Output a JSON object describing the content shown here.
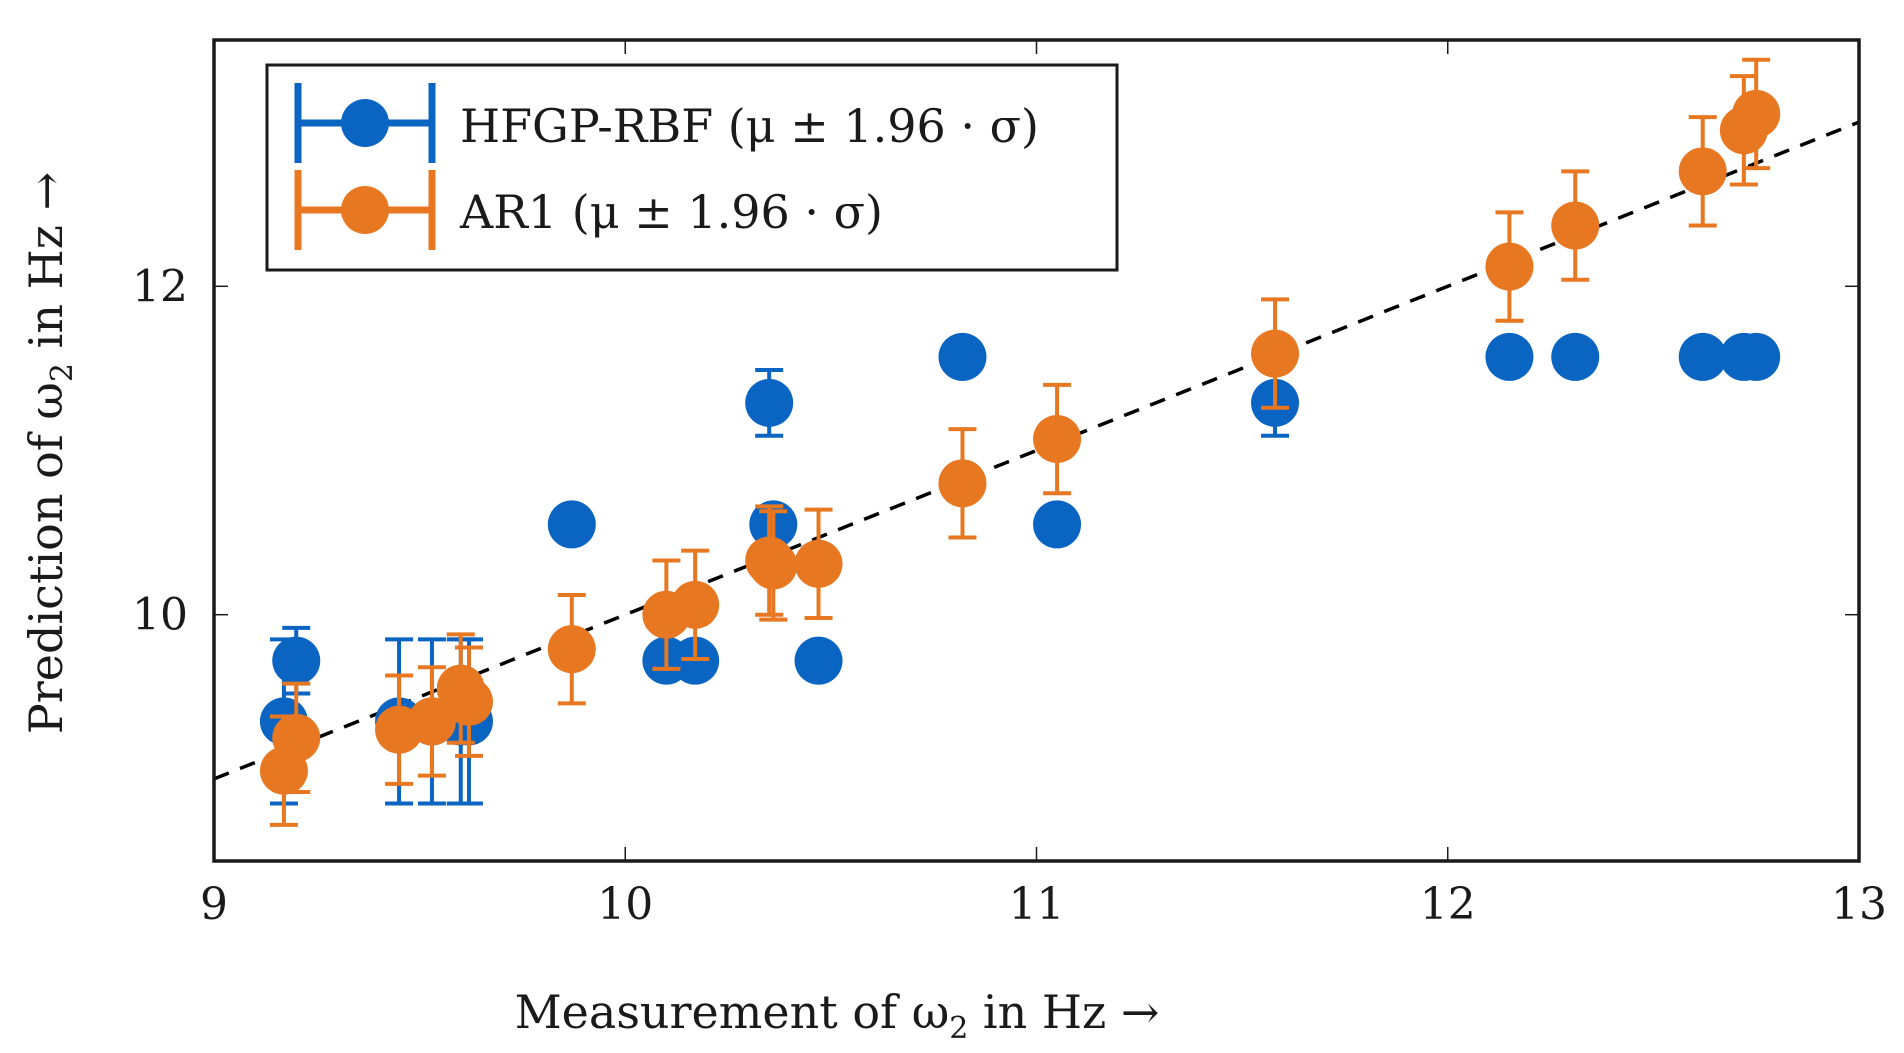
{
  "chart_data": {
    "type": "scatter",
    "title": "",
    "xlabel": "Measurement of ω",
    "xlabel_sub": "2",
    "xlabel_suffix": " in Hz →",
    "ylabel": "Prediction of ω",
    "ylabel_sub": "2",
    "ylabel_suffix": " in Hz →",
    "xlim": [
      9,
      13
    ],
    "ylim": [
      8.5,
      13.5
    ],
    "xticks": [
      9,
      10,
      11,
      12,
      13
    ],
    "yticks": [
      10,
      12
    ],
    "xtick_labels": [
      "9",
      "10",
      "11",
      "12",
      "13"
    ],
    "ytick_labels": [
      "10",
      "12"
    ],
    "reference_line": {
      "style": "dashed",
      "color": "#000000",
      "x": [
        9,
        13
      ],
      "y": [
        9,
        13
      ]
    },
    "legend_position": "top-left",
    "series": [
      {
        "name": "HFGP-RBF (μ ± 1.96 · σ)",
        "color": "#0a64c2",
        "points": [
          {
            "x": 9.17,
            "y": 9.35,
            "err": 0.5
          },
          {
            "x": 9.2,
            "y": 9.72,
            "err": 0.2
          },
          {
            "x": 9.45,
            "y": 9.35,
            "err": 0.5
          },
          {
            "x": 9.53,
            "y": 9.35,
            "err": 0.5
          },
          {
            "x": 9.6,
            "y": 9.35,
            "err": 0.5
          },
          {
            "x": 9.62,
            "y": 9.35,
            "err": 0.5
          },
          {
            "x": 9.87,
            "y": 10.55,
            "err": 0
          },
          {
            "x": 10.1,
            "y": 9.72,
            "err": 0
          },
          {
            "x": 10.17,
            "y": 9.72,
            "err": 0
          },
          {
            "x": 10.35,
            "y": 11.29,
            "err": 0.2
          },
          {
            "x": 10.36,
            "y": 10.55,
            "err": 0.1
          },
          {
            "x": 10.47,
            "y": 9.72,
            "err": 0
          },
          {
            "x": 10.82,
            "y": 11.57,
            "err": 0
          },
          {
            "x": 11.05,
            "y": 10.55,
            "err": 0
          },
          {
            "x": 11.58,
            "y": 11.29,
            "err": 0.2
          },
          {
            "x": 12.15,
            "y": 11.57,
            "err": 0
          },
          {
            "x": 12.31,
            "y": 11.57,
            "err": 0
          },
          {
            "x": 12.62,
            "y": 11.57,
            "err": 0
          },
          {
            "x": 12.72,
            "y": 11.57,
            "err": 0
          },
          {
            "x": 12.75,
            "y": 11.57,
            "err": 0
          }
        ]
      },
      {
        "name": "AR1 (μ ± 1.96 · σ)",
        "color": "#e87722",
        "points": [
          {
            "x": 9.17,
            "y": 9.05,
            "err": 0.33
          },
          {
            "x": 9.2,
            "y": 9.25,
            "err": 0.33
          },
          {
            "x": 9.45,
            "y": 9.3,
            "err": 0.33
          },
          {
            "x": 9.53,
            "y": 9.35,
            "err": 0.33
          },
          {
            "x": 9.6,
            "y": 9.55,
            "err": 0.33
          },
          {
            "x": 9.62,
            "y": 9.47,
            "err": 0.33
          },
          {
            "x": 9.87,
            "y": 9.79,
            "err": 0.33
          },
          {
            "x": 10.1,
            "y": 10.0,
            "err": 0.33
          },
          {
            "x": 10.17,
            "y": 10.06,
            "err": 0.33
          },
          {
            "x": 10.35,
            "y": 10.33,
            "err": 0.33
          },
          {
            "x": 10.36,
            "y": 10.3,
            "err": 0.33
          },
          {
            "x": 10.47,
            "y": 10.31,
            "err": 0.33
          },
          {
            "x": 10.82,
            "y": 10.8,
            "err": 0.33
          },
          {
            "x": 11.05,
            "y": 11.07,
            "err": 0.33
          },
          {
            "x": 11.58,
            "y": 11.59,
            "err": 0.33
          },
          {
            "x": 12.15,
            "y": 12.12,
            "err": 0.33
          },
          {
            "x": 12.31,
            "y": 12.37,
            "err": 0.33
          },
          {
            "x": 12.62,
            "y": 12.7,
            "err": 0.33
          },
          {
            "x": 12.72,
            "y": 12.95,
            "err": 0.33
          },
          {
            "x": 12.75,
            "y": 13.05,
            "err": 0.33
          }
        ]
      }
    ]
  }
}
